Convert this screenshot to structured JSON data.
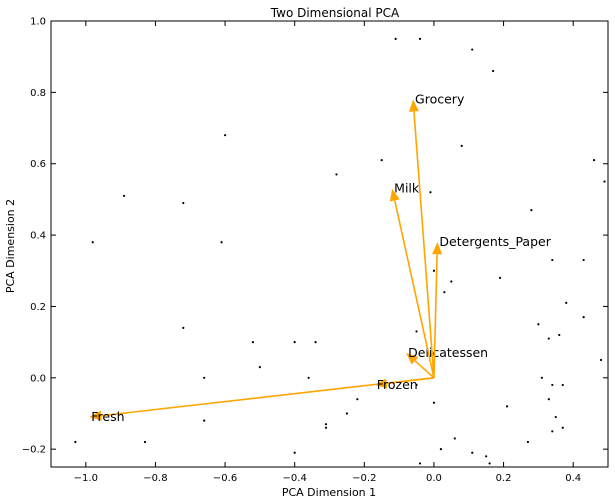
{
  "chart_data": {
    "type": "scatter",
    "title": "Two Dimensional PCA",
    "xlabel": "PCA Dimension 1",
    "ylabel": "PCA Dimension 2",
    "xlim": [
      -1.1,
      0.5
    ],
    "ylim": [
      -0.25,
      1.0
    ],
    "xticks": [
      -1.0,
      -0.8,
      -0.6,
      -0.4,
      -0.2,
      0.0,
      0.2,
      0.4
    ],
    "xtick_labels": [
      "−1.0",
      "−0.8",
      "−0.6",
      "−0.4",
      "−0.2",
      "0.0",
      "0.2",
      "0.4"
    ],
    "yticks": [
      -0.2,
      0.0,
      0.2,
      0.4,
      0.6,
      0.8,
      1.0
    ],
    "ytick_labels": [
      "−0.2",
      "0.0",
      "0.2",
      "0.4",
      "0.6",
      "0.8",
      "1.0"
    ],
    "grid": false,
    "arrow_color": "#ffa500",
    "point_color": "#000000",
    "vectors": [
      {
        "name": "Fresh",
        "x": -0.99,
        "y": -0.11
      },
      {
        "name": "Frozen",
        "x": -0.17,
        "y": -0.02
      },
      {
        "name": "Delicatessen",
        "x": -0.08,
        "y": 0.07
      },
      {
        "name": "Grocery",
        "x": -0.06,
        "y": 0.78
      },
      {
        "name": "Milk",
        "x": -0.12,
        "y": 0.53
      },
      {
        "name": "Detergents_Paper",
        "x": 0.01,
        "y": 0.38
      }
    ],
    "points": [
      [
        -0.11,
        0.95
      ],
      [
        -0.04,
        0.95
      ],
      [
        0.11,
        0.92
      ],
      [
        0.17,
        0.86
      ],
      [
        -0.6,
        0.68
      ],
      [
        0.08,
        0.65
      ],
      [
        -0.15,
        0.61
      ],
      [
        0.46,
        0.61
      ],
      [
        0.49,
        0.55
      ],
      [
        -0.28,
        0.57
      ],
      [
        -0.89,
        0.51
      ],
      [
        -0.72,
        0.49
      ],
      [
        -0.01,
        0.52
      ],
      [
        0.28,
        0.47
      ],
      [
        -0.98,
        0.38
      ],
      [
        -0.61,
        0.38
      ],
      [
        0.34,
        0.33
      ],
      [
        0.43,
        0.33
      ],
      [
        0.0,
        0.3
      ],
      [
        0.19,
        0.28
      ],
      [
        0.05,
        0.27
      ],
      [
        0.03,
        0.24
      ],
      [
        0.38,
        0.21
      ],
      [
        0.43,
        0.17
      ],
      [
        -0.72,
        0.14
      ],
      [
        0.3,
        0.15
      ],
      [
        -0.05,
        0.13
      ],
      [
        0.36,
        0.12
      ],
      [
        0.33,
        0.11
      ],
      [
        -0.52,
        0.1
      ],
      [
        -0.4,
        0.1
      ],
      [
        -0.34,
        0.1
      ],
      [
        0.48,
        0.05
      ],
      [
        -0.5,
        0.03
      ],
      [
        -0.36,
        0.0
      ],
      [
        -0.66,
        -0.0
      ],
      [
        0.31,
        0.0
      ],
      [
        0.34,
        -0.02
      ],
      [
        0.37,
        -0.02
      ],
      [
        -0.05,
        -0.02
      ],
      [
        0.0,
        -0.07
      ],
      [
        -0.22,
        -0.06
      ],
      [
        0.21,
        -0.08
      ],
      [
        -0.25,
        -0.1
      ],
      [
        0.35,
        -0.11
      ],
      [
        -0.66,
        -0.12
      ],
      [
        0.33,
        -0.06
      ],
      [
        -0.31,
        -0.13
      ],
      [
        -0.31,
        -0.14
      ],
      [
        0.37,
        -0.14
      ],
      [
        0.34,
        -0.15
      ],
      [
        -1.03,
        -0.18
      ],
      [
        -0.83,
        -0.18
      ],
      [
        0.27,
        -0.18
      ],
      [
        0.06,
        -0.17
      ],
      [
        0.02,
        -0.2
      ],
      [
        -0.4,
        -0.21
      ],
      [
        0.11,
        -0.21
      ],
      [
        0.15,
        -0.22
      ],
      [
        0.16,
        -0.24
      ],
      [
        -0.04,
        -0.24
      ]
    ]
  }
}
